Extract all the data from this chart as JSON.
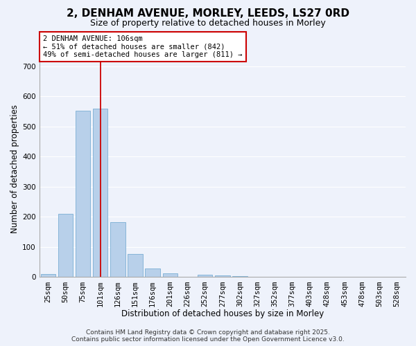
{
  "title": "2, DENHAM AVENUE, MORLEY, LEEDS, LS27 0RD",
  "subtitle": "Size of property relative to detached houses in Morley",
  "xlabel": "Distribution of detached houses by size in Morley",
  "ylabel": "Number of detached properties",
  "categories": [
    "25sqm",
    "50sqm",
    "75sqm",
    "101sqm",
    "126sqm",
    "151sqm",
    "176sqm",
    "201sqm",
    "226sqm",
    "252sqm",
    "277sqm",
    "302sqm",
    "327sqm",
    "352sqm",
    "377sqm",
    "403sqm",
    "428sqm",
    "453sqm",
    "478sqm",
    "503sqm",
    "528sqm"
  ],
  "values": [
    10,
    210,
    553,
    560,
    182,
    77,
    28,
    12,
    0,
    8,
    5,
    3,
    0,
    0,
    0,
    0,
    0,
    0,
    0,
    0,
    2
  ],
  "bar_color": "#b8d0ea",
  "bar_edge_color": "#7aaed4",
  "vline_x_index": 3,
  "vline_color": "#cc0000",
  "annotation_line1": "2 DENHAM AVENUE: 106sqm",
  "annotation_line2": "← 51% of detached houses are smaller (842)",
  "annotation_line3": "49% of semi-detached houses are larger (811) →",
  "annotation_box_color": "#ffffff",
  "annotation_box_edge": "#cc0000",
  "ylim": [
    0,
    720
  ],
  "yticks": [
    0,
    100,
    200,
    300,
    400,
    500,
    600,
    700
  ],
  "footer_line1": "Contains HM Land Registry data © Crown copyright and database right 2025.",
  "footer_line2": "Contains public sector information licensed under the Open Government Licence v3.0.",
  "bg_color": "#eef2fb",
  "grid_color": "#ffffff",
  "title_fontsize": 11,
  "subtitle_fontsize": 9,
  "axis_label_fontsize": 8.5,
  "tick_fontsize": 7.5,
  "annotation_fontsize": 7.5,
  "footer_fontsize": 6.5
}
